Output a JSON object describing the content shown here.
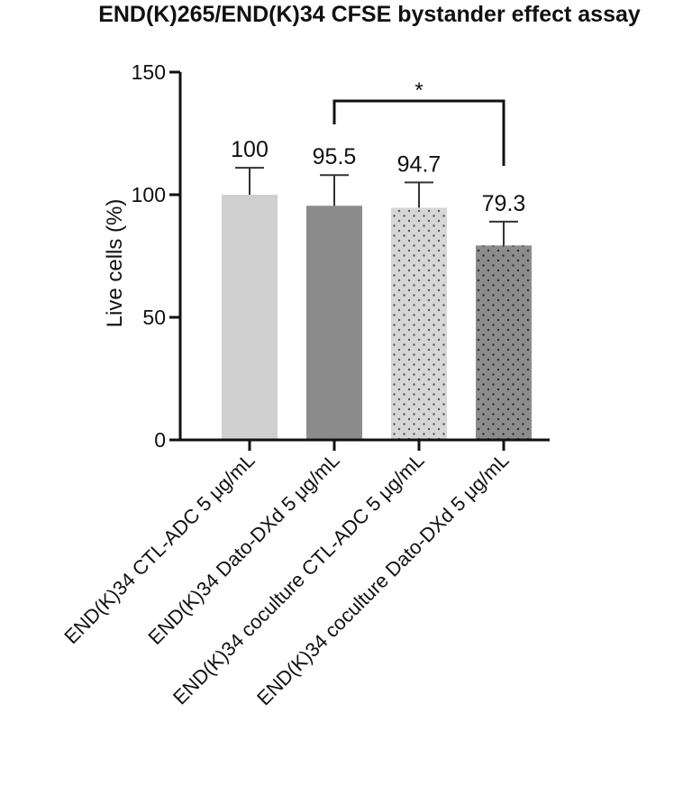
{
  "chart_data": {
    "type": "bar",
    "title": "END(K)265/END(K)34 CFSE bystander effect assay",
    "ylabel": "Live cells (%)",
    "xlabel": "",
    "ylim": [
      0,
      150
    ],
    "yticks": [
      0,
      50,
      100,
      150
    ],
    "categories": [
      "END(K)34 CTL-ADC 5 μg/mL",
      "END(K)34 Dato-DXd 5 μg/mL",
      "END(K)34 coculture CTL-ADC 5 μg/mL",
      "END(K)34 coculture Dato-DXd 5 μg/mL"
    ],
    "values": [
      100,
      95.5,
      94.7,
      79.3
    ],
    "error_upper": [
      111,
      108,
      105,
      89
    ],
    "data_labels": [
      "100",
      "95.5",
      "94.7",
      "79.3"
    ],
    "bar_colors": [
      "#cfcfcf",
      "#8c8c8c",
      "#d6d6d6",
      "#8c8c8c"
    ],
    "bar_patterns": [
      "solid",
      "solid",
      "dots",
      "dots"
    ],
    "significance": {
      "from_index": 1,
      "to_index": 3,
      "label": "*"
    },
    "grid": false,
    "legend": "none"
  }
}
